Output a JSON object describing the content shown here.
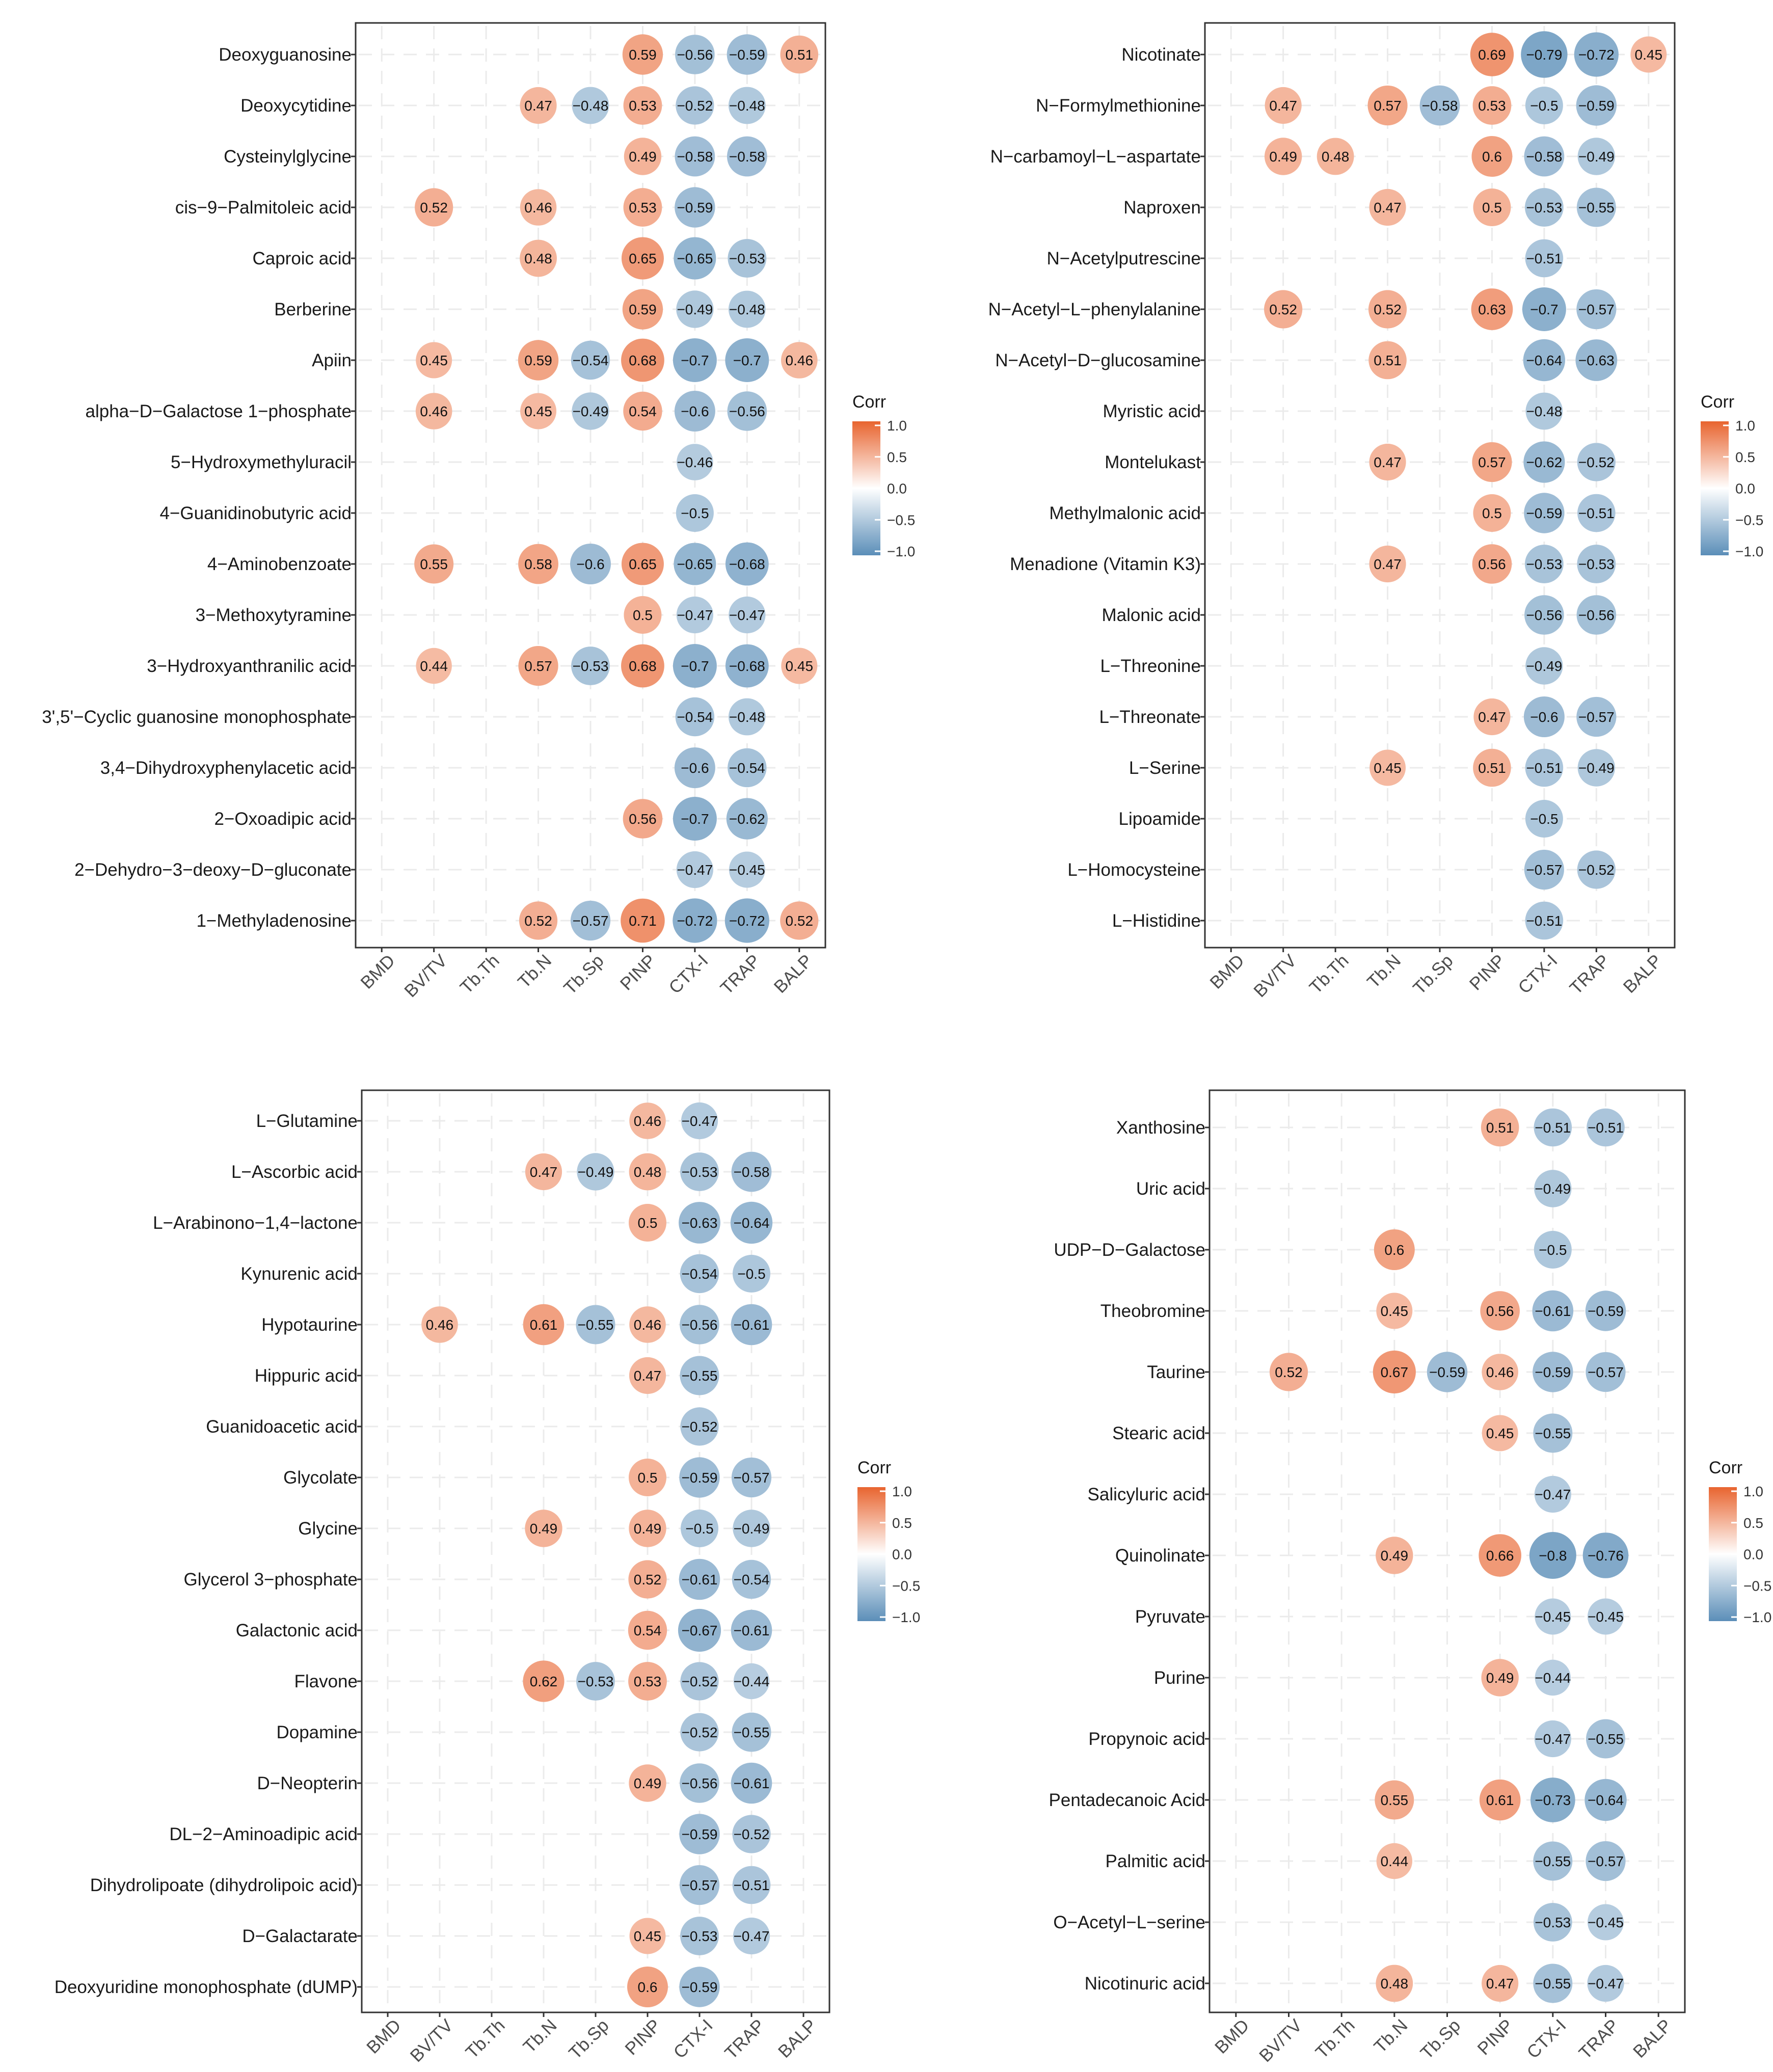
{
  "x_labels": [
    "BMD",
    "BV/TV",
    "Tb.Th",
    "Tb.N",
    "Tb.Sp",
    "PINP",
    "CTX-I",
    "TRAP",
    "BALP"
  ],
  "legend": {
    "title": "Corr",
    "ticks": [
      "1.0",
      "0.5",
      "0.0",
      "-0.5",
      "-1.0"
    ]
  },
  "colors": {
    "positive": "#E8642F",
    "neutral": "#FFFFFF",
    "negative": "#5B8EB8",
    "grid": "#EBEBEB",
    "axis": "#333333"
  },
  "chart_data": [
    {
      "type": "heatmap",
      "panel": "top-left",
      "legend_title": "Corr",
      "value_range": [
        -1,
        1
      ],
      "x_categories": [
        "BMD",
        "BV/TV",
        "Tb.Th",
        "Tb.N",
        "Tb.Sp",
        "PINP",
        "CTX-I",
        "TRAP",
        "BALP"
      ],
      "rows": [
        {
          "label": "Deoxyguanosine",
          "values": [
            null,
            null,
            null,
            null,
            null,
            0.59,
            -0.56,
            -0.59,
            0.51
          ]
        },
        {
          "label": "Deoxycytidine",
          "values": [
            null,
            null,
            null,
            0.47,
            -0.48,
            0.53,
            -0.52,
            -0.48,
            null
          ]
        },
        {
          "label": "Cysteinylglycine",
          "values": [
            null,
            null,
            null,
            null,
            null,
            0.49,
            -0.58,
            -0.58,
            null
          ]
        },
        {
          "label": "cis−9−Palmitoleic acid",
          "values": [
            null,
            0.52,
            null,
            0.46,
            null,
            0.53,
            -0.59,
            null,
            null
          ]
        },
        {
          "label": "Caproic acid",
          "values": [
            null,
            null,
            null,
            0.48,
            null,
            0.65,
            -0.65,
            -0.53,
            null
          ]
        },
        {
          "label": "Berberine",
          "values": [
            null,
            null,
            null,
            null,
            null,
            0.59,
            -0.49,
            -0.48,
            null
          ]
        },
        {
          "label": "Apiin",
          "values": [
            null,
            0.45,
            null,
            0.59,
            -0.54,
            0.68,
            -0.7,
            -0.7,
            0.46
          ]
        },
        {
          "label": "alpha−D−Galactose 1−phosphate",
          "values": [
            null,
            0.46,
            null,
            0.45,
            -0.49,
            0.54,
            -0.6,
            -0.56,
            null
          ]
        },
        {
          "label": "5−Hydroxymethyluracil",
          "values": [
            null,
            null,
            null,
            null,
            null,
            null,
            -0.46,
            null,
            null
          ]
        },
        {
          "label": "4−Guanidinobutyric acid",
          "values": [
            null,
            null,
            null,
            null,
            null,
            null,
            -0.5,
            null,
            null
          ]
        },
        {
          "label": "4−Aminobenzoate",
          "values": [
            null,
            0.55,
            null,
            0.58,
            -0.6,
            0.65,
            -0.65,
            -0.68,
            null
          ]
        },
        {
          "label": "3−Methoxytyramine",
          "values": [
            null,
            null,
            null,
            null,
            null,
            0.5,
            -0.47,
            -0.47,
            null
          ]
        },
        {
          "label": "3−Hydroxyanthranilic acid",
          "values": [
            null,
            0.44,
            null,
            0.57,
            -0.53,
            0.68,
            -0.7,
            -0.68,
            0.45
          ]
        },
        {
          "label": "3',5'−Cyclic guanosine monophosphate",
          "values": [
            null,
            null,
            null,
            null,
            null,
            null,
            -0.54,
            -0.48,
            null
          ]
        },
        {
          "label": "3,4−Dihydroxyphenylacetic acid",
          "values": [
            null,
            null,
            null,
            null,
            null,
            null,
            -0.6,
            -0.54,
            null
          ]
        },
        {
          "label": "2−Oxoadipic acid",
          "values": [
            null,
            null,
            null,
            null,
            null,
            0.56,
            -0.7,
            -0.62,
            null
          ]
        },
        {
          "label": "2−Dehydro−3−deoxy−D−gluconate",
          "values": [
            null,
            null,
            null,
            null,
            null,
            null,
            -0.47,
            -0.45,
            null
          ]
        },
        {
          "label": "1−Methyladenosine",
          "values": [
            null,
            null,
            null,
            0.52,
            -0.57,
            0.71,
            -0.72,
            -0.72,
            0.52
          ]
        }
      ]
    },
    {
      "type": "heatmap",
      "panel": "top-right",
      "legend_title": "Corr",
      "value_range": [
        -1,
        1
      ],
      "x_categories": [
        "BMD",
        "BV/TV",
        "Tb.Th",
        "Tb.N",
        "Tb.Sp",
        "PINP",
        "CTX-I",
        "TRAP",
        "BALP"
      ],
      "rows": [
        {
          "label": "Nicotinate",
          "values": [
            null,
            null,
            null,
            null,
            null,
            0.69,
            -0.79,
            -0.72,
            0.45
          ]
        },
        {
          "label": "N−Formylmethionine",
          "values": [
            null,
            0.47,
            null,
            0.57,
            -0.58,
            0.53,
            -0.5,
            -0.59,
            null
          ]
        },
        {
          "label": "N−carbamoyl−L−aspartate",
          "values": [
            null,
            0.49,
            0.48,
            null,
            null,
            0.6,
            -0.58,
            -0.49,
            null
          ]
        },
        {
          "label": "Naproxen",
          "values": [
            null,
            null,
            null,
            0.47,
            null,
            0.5,
            -0.53,
            -0.55,
            null
          ]
        },
        {
          "label": "N−Acetylputrescine",
          "values": [
            null,
            null,
            null,
            null,
            null,
            null,
            -0.51,
            null,
            null
          ]
        },
        {
          "label": "N−Acetyl−L−phenylalanine",
          "values": [
            null,
            0.52,
            null,
            0.52,
            null,
            0.63,
            -0.7,
            -0.57,
            null
          ]
        },
        {
          "label": "N−Acetyl−D−glucosamine",
          "values": [
            null,
            null,
            null,
            0.51,
            null,
            null,
            -0.64,
            -0.63,
            null
          ]
        },
        {
          "label": "Myristic acid",
          "values": [
            null,
            null,
            null,
            null,
            null,
            null,
            -0.48,
            null,
            null
          ]
        },
        {
          "label": "Montelukast",
          "values": [
            null,
            null,
            null,
            0.47,
            null,
            0.57,
            -0.62,
            -0.52,
            null
          ]
        },
        {
          "label": "Methylmalonic acid",
          "values": [
            null,
            null,
            null,
            null,
            null,
            0.5,
            -0.59,
            -0.51,
            null
          ]
        },
        {
          "label": "Menadione (Vitamin K3)",
          "values": [
            null,
            null,
            null,
            0.47,
            null,
            0.56,
            -0.53,
            -0.53,
            null
          ]
        },
        {
          "label": "Malonic acid",
          "values": [
            null,
            null,
            null,
            null,
            null,
            null,
            -0.56,
            -0.56,
            null
          ]
        },
        {
          "label": "L−Threonine",
          "values": [
            null,
            null,
            null,
            null,
            null,
            null,
            -0.49,
            null,
            null
          ]
        },
        {
          "label": "L−Threonate",
          "values": [
            null,
            null,
            null,
            null,
            null,
            0.47,
            -0.6,
            -0.57,
            null
          ]
        },
        {
          "label": "L−Serine",
          "values": [
            null,
            null,
            null,
            0.45,
            null,
            0.51,
            -0.51,
            -0.49,
            null
          ]
        },
        {
          "label": "Lipoamide",
          "values": [
            null,
            null,
            null,
            null,
            null,
            null,
            -0.5,
            null,
            null
          ]
        },
        {
          "label": "L−Homocysteine",
          "values": [
            null,
            null,
            null,
            null,
            null,
            null,
            -0.57,
            -0.52,
            null
          ]
        },
        {
          "label": "L−Histidine",
          "values": [
            null,
            null,
            null,
            null,
            null,
            null,
            -0.51,
            null,
            null
          ]
        }
      ]
    },
    {
      "type": "heatmap",
      "panel": "bottom-left",
      "legend_title": "Corr",
      "value_range": [
        -1,
        1
      ],
      "x_categories": [
        "BMD",
        "BV/TV",
        "Tb.Th",
        "Tb.N",
        "Tb.Sp",
        "PINP",
        "CTX-I",
        "TRAP",
        "BALP"
      ],
      "rows": [
        {
          "label": "L−Glutamine",
          "values": [
            null,
            null,
            null,
            null,
            null,
            0.46,
            -0.47,
            null,
            null
          ]
        },
        {
          "label": "L−Ascorbic acid",
          "values": [
            null,
            null,
            null,
            0.47,
            -0.49,
            0.48,
            -0.53,
            -0.58,
            null
          ]
        },
        {
          "label": "L−Arabinono−1,4−lactone",
          "values": [
            null,
            null,
            null,
            null,
            null,
            0.5,
            -0.63,
            -0.64,
            null
          ]
        },
        {
          "label": "Kynurenic acid",
          "values": [
            null,
            null,
            null,
            null,
            null,
            null,
            -0.54,
            -0.5,
            null
          ]
        },
        {
          "label": "Hypotaurine",
          "values": [
            null,
            0.46,
            null,
            0.61,
            -0.55,
            0.46,
            -0.56,
            -0.61,
            null
          ]
        },
        {
          "label": "Hippuric acid",
          "values": [
            null,
            null,
            null,
            null,
            null,
            0.47,
            -0.55,
            null,
            null
          ]
        },
        {
          "label": "Guanidoacetic acid",
          "values": [
            null,
            null,
            null,
            null,
            null,
            null,
            -0.52,
            null,
            null
          ]
        },
        {
          "label": "Glycolate",
          "values": [
            null,
            null,
            null,
            null,
            null,
            0.5,
            -0.59,
            -0.57,
            null
          ]
        },
        {
          "label": "Glycine",
          "values": [
            null,
            null,
            null,
            0.49,
            null,
            0.49,
            -0.5,
            -0.49,
            null
          ]
        },
        {
          "label": "Glycerol 3−phosphate",
          "values": [
            null,
            null,
            null,
            null,
            null,
            0.52,
            -0.61,
            -0.54,
            null
          ]
        },
        {
          "label": "Galactonic acid",
          "values": [
            null,
            null,
            null,
            null,
            null,
            0.54,
            -0.67,
            -0.61,
            null
          ]
        },
        {
          "label": "Flavone",
          "values": [
            null,
            null,
            null,
            0.62,
            -0.53,
            0.53,
            -0.52,
            -0.44,
            null
          ]
        },
        {
          "label": "Dopamine",
          "values": [
            null,
            null,
            null,
            null,
            null,
            null,
            -0.52,
            -0.55,
            null
          ]
        },
        {
          "label": "D−Neopterin",
          "values": [
            null,
            null,
            null,
            null,
            null,
            0.49,
            -0.56,
            -0.61,
            null
          ]
        },
        {
          "label": "DL−2−Aminoadipic acid",
          "values": [
            null,
            null,
            null,
            null,
            null,
            null,
            -0.59,
            -0.52,
            null
          ]
        },
        {
          "label": "Dihydrolipoate (dihydrolipoic acid)",
          "values": [
            null,
            null,
            null,
            null,
            null,
            null,
            -0.57,
            -0.51,
            null
          ]
        },
        {
          "label": "D−Galactarate",
          "values": [
            null,
            null,
            null,
            null,
            null,
            0.45,
            -0.53,
            -0.47,
            null
          ]
        },
        {
          "label": "Deoxyuridine monophosphate (dUMP)",
          "values": [
            null,
            null,
            null,
            null,
            null,
            0.6,
            -0.59,
            null,
            null
          ]
        }
      ]
    },
    {
      "type": "heatmap",
      "panel": "bottom-right",
      "legend_title": "Corr",
      "value_range": [
        -1,
        1
      ],
      "x_categories": [
        "BMD",
        "BV/TV",
        "Tb.Th",
        "Tb.N",
        "Tb.Sp",
        "PINP",
        "CTX-I",
        "TRAP",
        "BALP"
      ],
      "rows": [
        {
          "label": "Xanthosine",
          "values": [
            null,
            null,
            null,
            null,
            null,
            0.51,
            -0.51,
            -0.51,
            null
          ]
        },
        {
          "label": "Uric acid",
          "values": [
            null,
            null,
            null,
            null,
            null,
            null,
            -0.49,
            null,
            null
          ]
        },
        {
          "label": "UDP−D−Galactose",
          "values": [
            null,
            null,
            null,
            0.6,
            null,
            null,
            -0.5,
            null,
            null
          ]
        },
        {
          "label": "Theobromine",
          "values": [
            null,
            null,
            null,
            0.45,
            null,
            0.56,
            -0.61,
            -0.59,
            null
          ]
        },
        {
          "label": "Taurine",
          "values": [
            null,
            0.52,
            null,
            0.67,
            -0.59,
            0.46,
            -0.59,
            -0.57,
            null
          ]
        },
        {
          "label": "Stearic acid",
          "values": [
            null,
            null,
            null,
            null,
            null,
            0.45,
            -0.55,
            null,
            null
          ]
        },
        {
          "label": "Salicyluric acid",
          "values": [
            null,
            null,
            null,
            null,
            null,
            null,
            -0.47,
            null,
            null
          ]
        },
        {
          "label": "Quinolinate",
          "values": [
            null,
            null,
            null,
            0.49,
            null,
            0.66,
            -0.8,
            -0.76,
            null
          ]
        },
        {
          "label": "Pyruvate",
          "values": [
            null,
            null,
            null,
            null,
            null,
            null,
            -0.45,
            -0.45,
            null
          ]
        },
        {
          "label": "Purine",
          "values": [
            null,
            null,
            null,
            null,
            null,
            0.49,
            -0.44,
            null,
            null
          ]
        },
        {
          "label": "Propynoic acid",
          "values": [
            null,
            null,
            null,
            null,
            null,
            null,
            -0.47,
            -0.55,
            null
          ]
        },
        {
          "label": "Pentadecanoic Acid",
          "values": [
            null,
            null,
            null,
            0.55,
            null,
            0.61,
            -0.73,
            -0.64,
            null
          ]
        },
        {
          "label": "Palmitic acid",
          "values": [
            null,
            null,
            null,
            0.44,
            null,
            null,
            -0.55,
            -0.57,
            null
          ]
        },
        {
          "label": "O−Acetyl−L−serine",
          "values": [
            null,
            null,
            null,
            null,
            null,
            null,
            -0.53,
            -0.45,
            null
          ]
        },
        {
          "label": "Nicotinuric acid",
          "values": [
            null,
            null,
            null,
            0.48,
            null,
            0.47,
            -0.55,
            -0.47,
            null
          ]
        }
      ]
    }
  ]
}
